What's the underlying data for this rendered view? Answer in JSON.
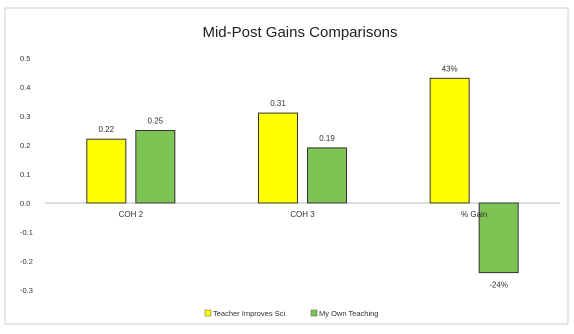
{
  "chart_data": {
    "type": "bar",
    "title": "Mid-Post Gains Comparisons",
    "xlabel": "",
    "ylabel": "",
    "categories": [
      "COH 2",
      "COH 3",
      "% Gain"
    ],
    "series": [
      {
        "name": "Teacher Improves Sci",
        "color": "#ffff00",
        "values": [
          0.22,
          0.31,
          0.43
        ],
        "labels": [
          "0.22",
          "0.31",
          "43%"
        ]
      },
      {
        "name": "My Own Teaching",
        "color": "#7dc454",
        "values": [
          0.25,
          0.19,
          -0.24
        ],
        "labels": [
          "0.25",
          "0.19",
          "-24%"
        ]
      }
    ],
    "ylim": [
      -0.3,
      0.5
    ],
    "yticks": [
      "0.5",
      "0.4",
      "0.3",
      "0.2",
      "0.1",
      "0.0",
      "-0.1",
      "-0.2",
      "-0.3"
    ],
    "grid": false,
    "legend_position": "bottom"
  }
}
